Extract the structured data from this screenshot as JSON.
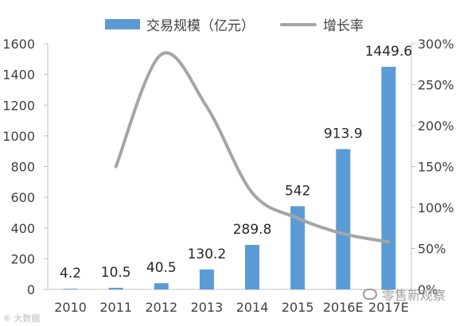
{
  "chart_data": {
    "type": "bar+line",
    "categories": [
      "2010",
      "2011",
      "2012",
      "2013",
      "2014",
      "2015",
      "2016E",
      "2017E"
    ],
    "series": [
      {
        "name": "交易规模（亿元）",
        "type": "bar",
        "axis": "left",
        "values": [
          4.2,
          10.5,
          40.5,
          130.2,
          289.8,
          542,
          913.9,
          1449.6
        ],
        "labels": [
          "4.2",
          "10.5",
          "40.5",
          "130.2",
          "289.8",
          "542",
          "913.9",
          "1449.6"
        ]
      },
      {
        "name": "增长率",
        "type": "line",
        "axis": "right",
        "x": [
          "2011",
          "2012",
          "2013",
          "2014",
          "2015",
          "2016E",
          "2017E"
        ],
        "values": [
          150,
          287,
          223,
          118,
          87,
          68,
          58
        ]
      }
    ],
    "y_left": {
      "min": 0,
      "max": 1600,
      "ticks": [
        "0",
        "200",
        "400",
        "600",
        "800",
        "1000",
        "1200",
        "1400",
        "1600"
      ]
    },
    "y_right": {
      "min": 0,
      "max": 300,
      "ticks": [
        "0%",
        "50%",
        "100%",
        "150%",
        "200%",
        "250%",
        "300%"
      ]
    },
    "colors": {
      "bar": "#5b9bd5",
      "line": "#a5a5a5",
      "text": "#404040",
      "axis": "#bfbfbf"
    },
    "legend_position": "top",
    "grid": false
  },
  "watermark": {
    "left": "⑥ 大数据",
    "right": "零售新观察"
  }
}
